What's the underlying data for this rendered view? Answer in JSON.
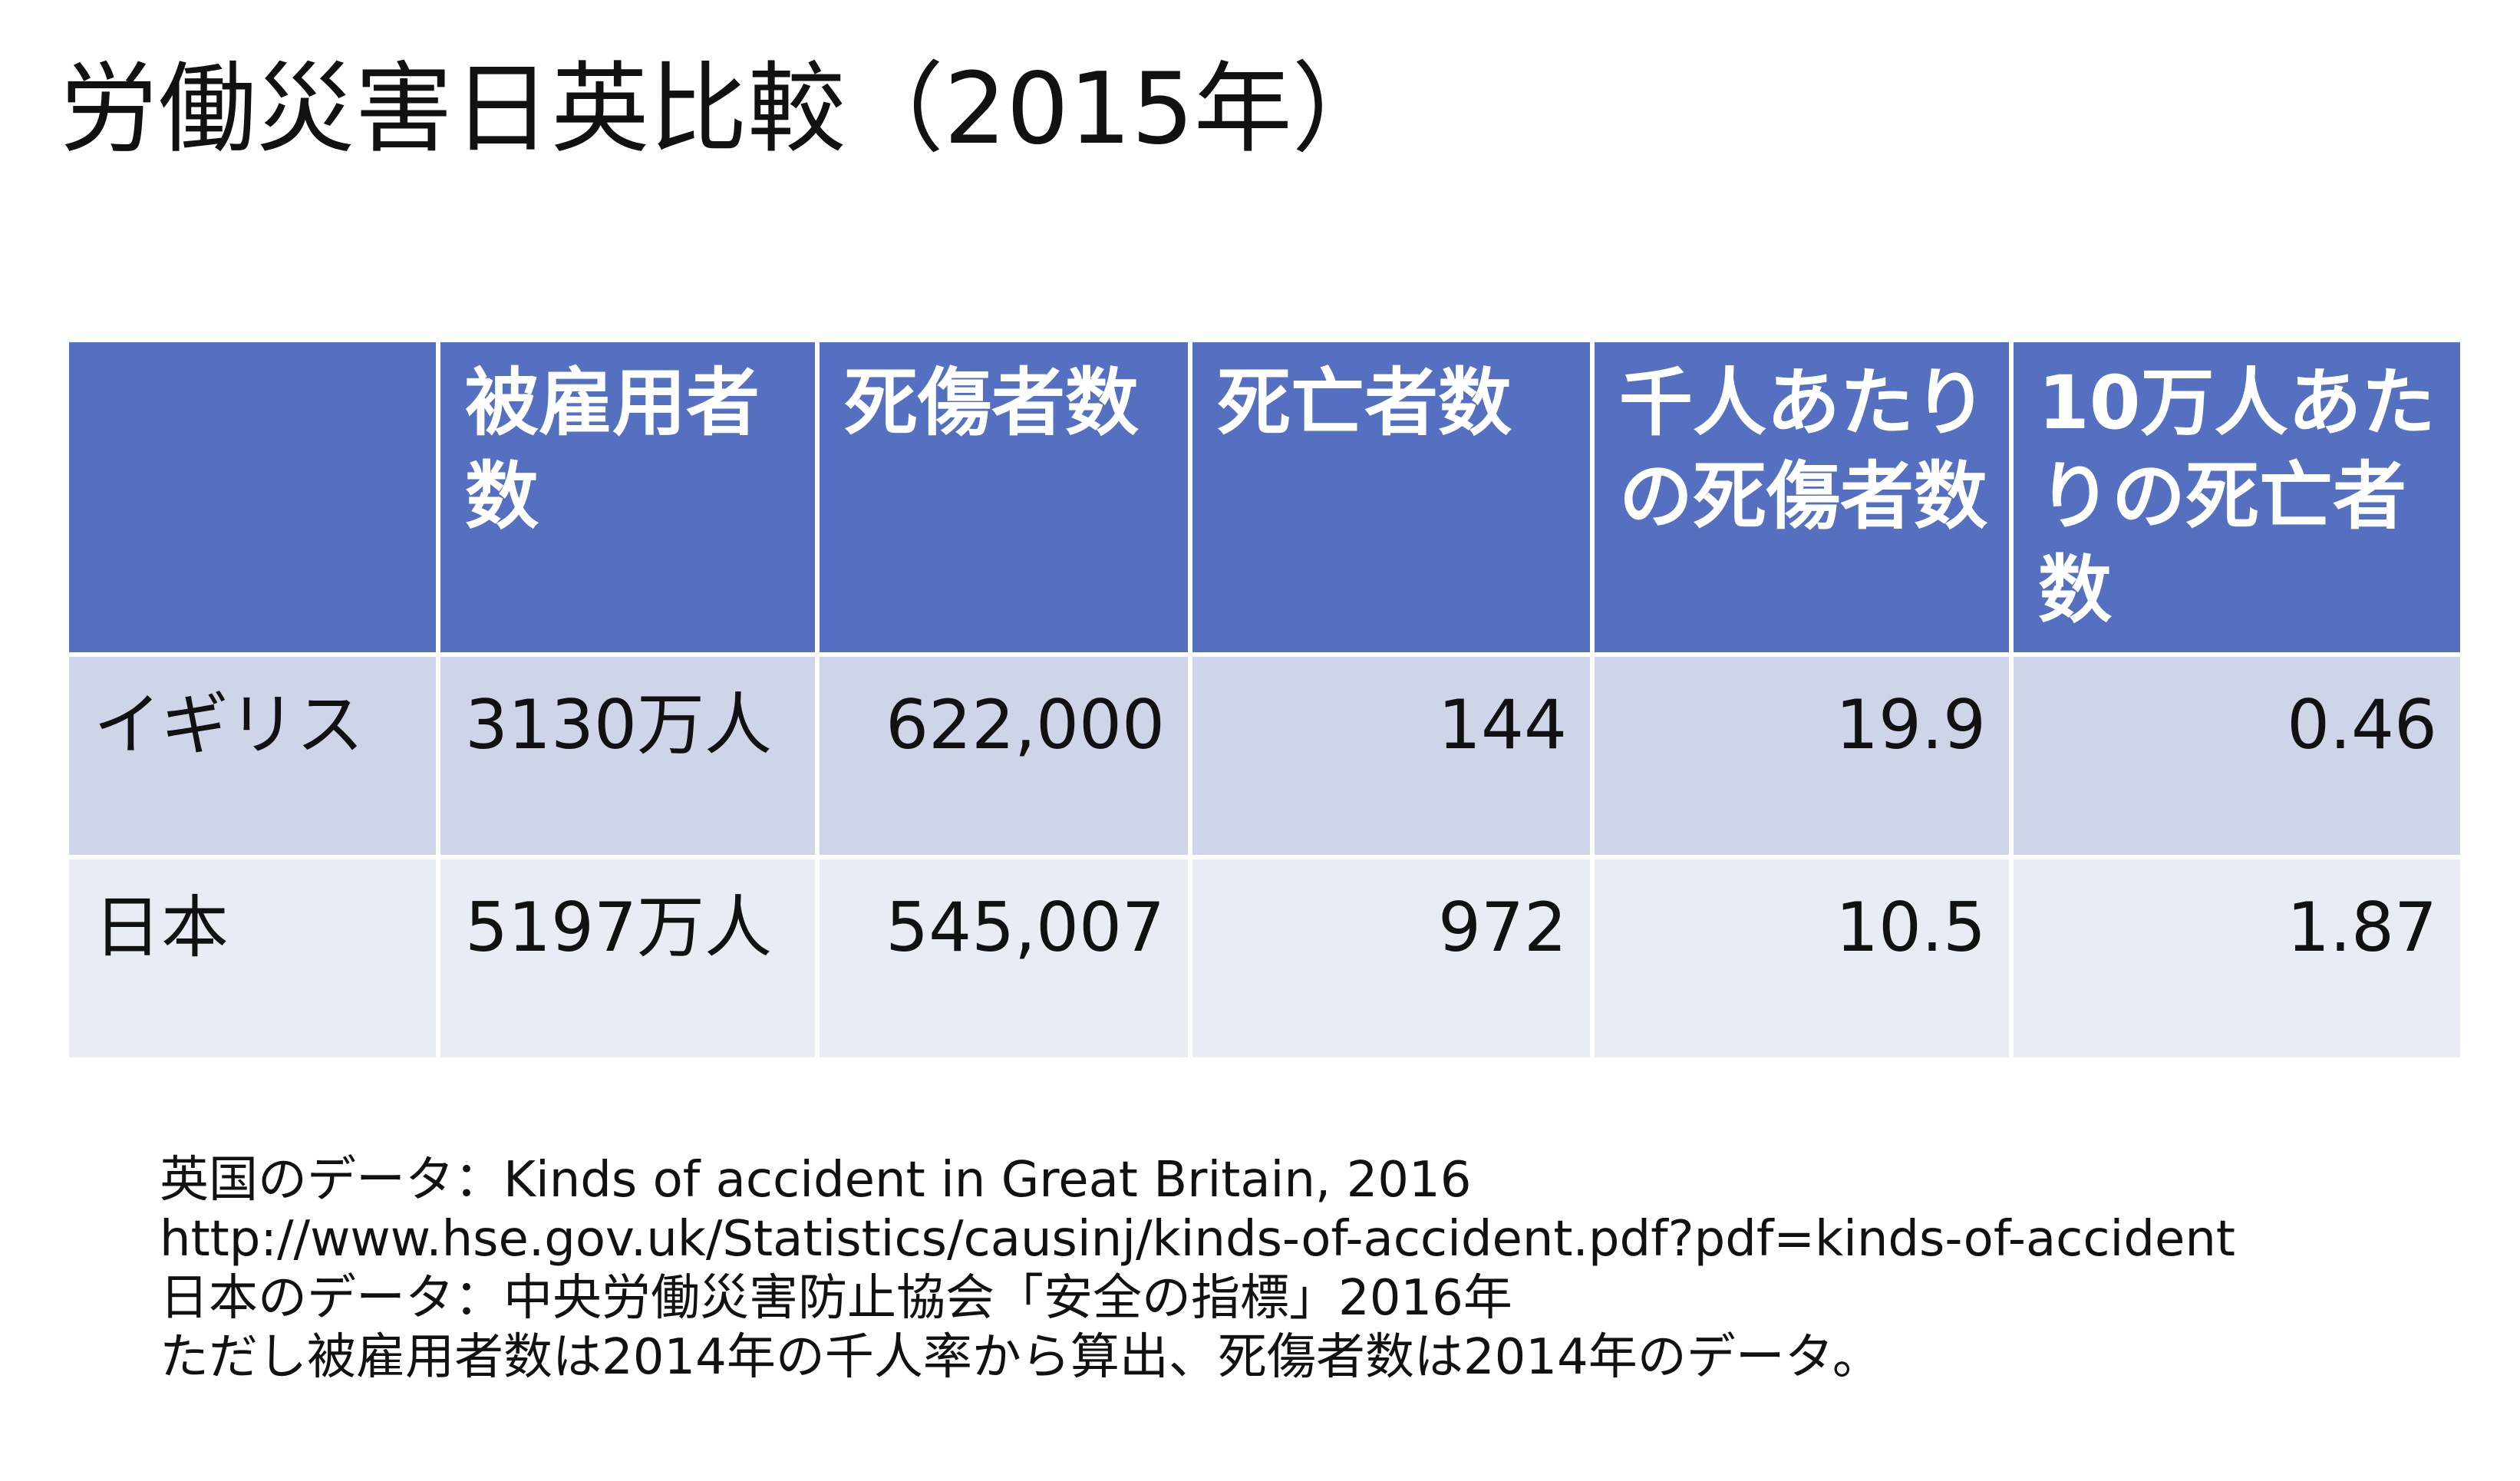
{
  "slide": {
    "title": "労働災害日英比較（2015年）"
  },
  "table": {
    "headers": [
      "",
      "被雇用者数",
      "死傷者数",
      "死亡者数",
      "千人あたりの死傷者数",
      "10万人あたりの死亡者数"
    ],
    "rows": [
      {
        "country": "イギリス",
        "employees": "3130万人",
        "casualties": "622,000",
        "deaths": "144",
        "casualties_per_thousand": "19.9",
        "deaths_per_100k": "0.46"
      },
      {
        "country": "日本",
        "employees": "5197万人",
        "casualties": "545,007",
        "deaths": "972",
        "casualties_per_thousand": "10.5",
        "deaths_per_100k": "1.87"
      }
    ]
  },
  "notes": [
    "英国のデータ：Kinds of accident in Great Britain, 2016",
    "http://www.hse.gov.uk/Statistics/causinj/kinds-of-accident.pdf?pdf=kinds-of-accident",
    "日本のデータ：中央労働災害防止協会「安全の指標」2016年",
    "ただし被雇用者数は2014年の千人率から算出、死傷者数は2014年のデータ。"
  ],
  "colors": {
    "header_bg": "#5670c1",
    "row_odd_bg": "#cfd5e9",
    "row_even_bg": "#e9ebf5"
  }
}
